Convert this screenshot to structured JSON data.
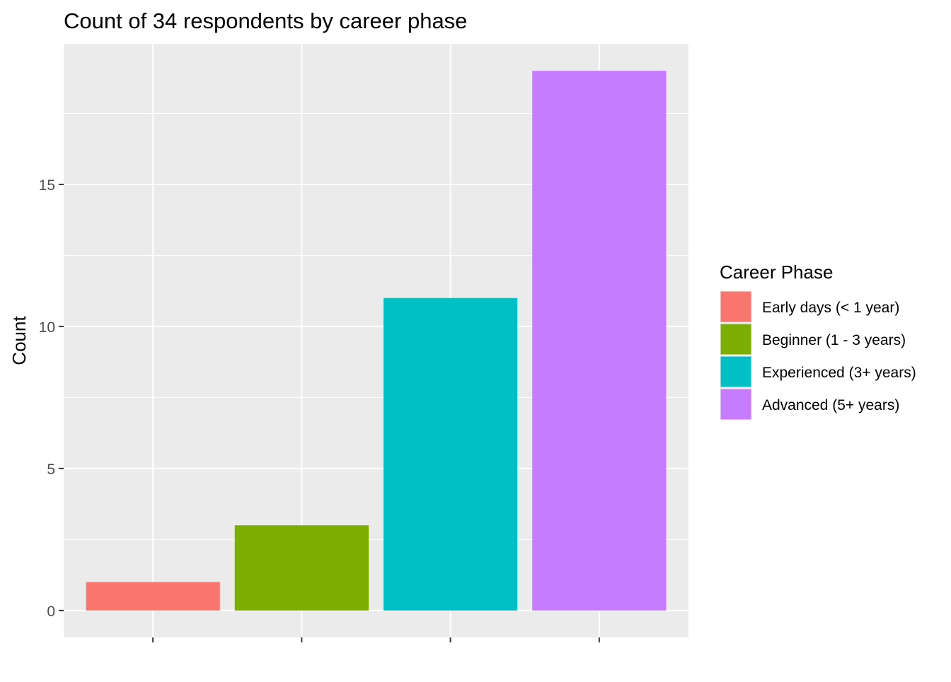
{
  "chart_data": {
    "type": "bar",
    "title": "Count of 34 respondents by career phase",
    "xlabel": "",
    "ylabel": "Count",
    "categories": [
      "Early days (< 1 year)",
      "Beginner (1 - 3 years)",
      "Experienced (3+ years)",
      "Advanced (5+ years)"
    ],
    "values": [
      1,
      3,
      11,
      19
    ],
    "colors": [
      "#F8766D",
      "#7CAE00",
      "#00BFC4",
      "#C77CFF"
    ],
    "ylim": [
      -0.95,
      19.95
    ],
    "yticks": [
      0,
      5,
      10,
      15
    ],
    "ytick_labels": [
      "0",
      "5",
      "10",
      "15"
    ],
    "grid": true,
    "panel_background": "#EBEBEB",
    "legend": {
      "title": "Career Phase",
      "position": "right",
      "entries": [
        "Early days (< 1 year)",
        "Beginner (1 - 3 years)",
        "Experienced (3+ years)",
        "Advanced (5+ years)"
      ]
    }
  }
}
